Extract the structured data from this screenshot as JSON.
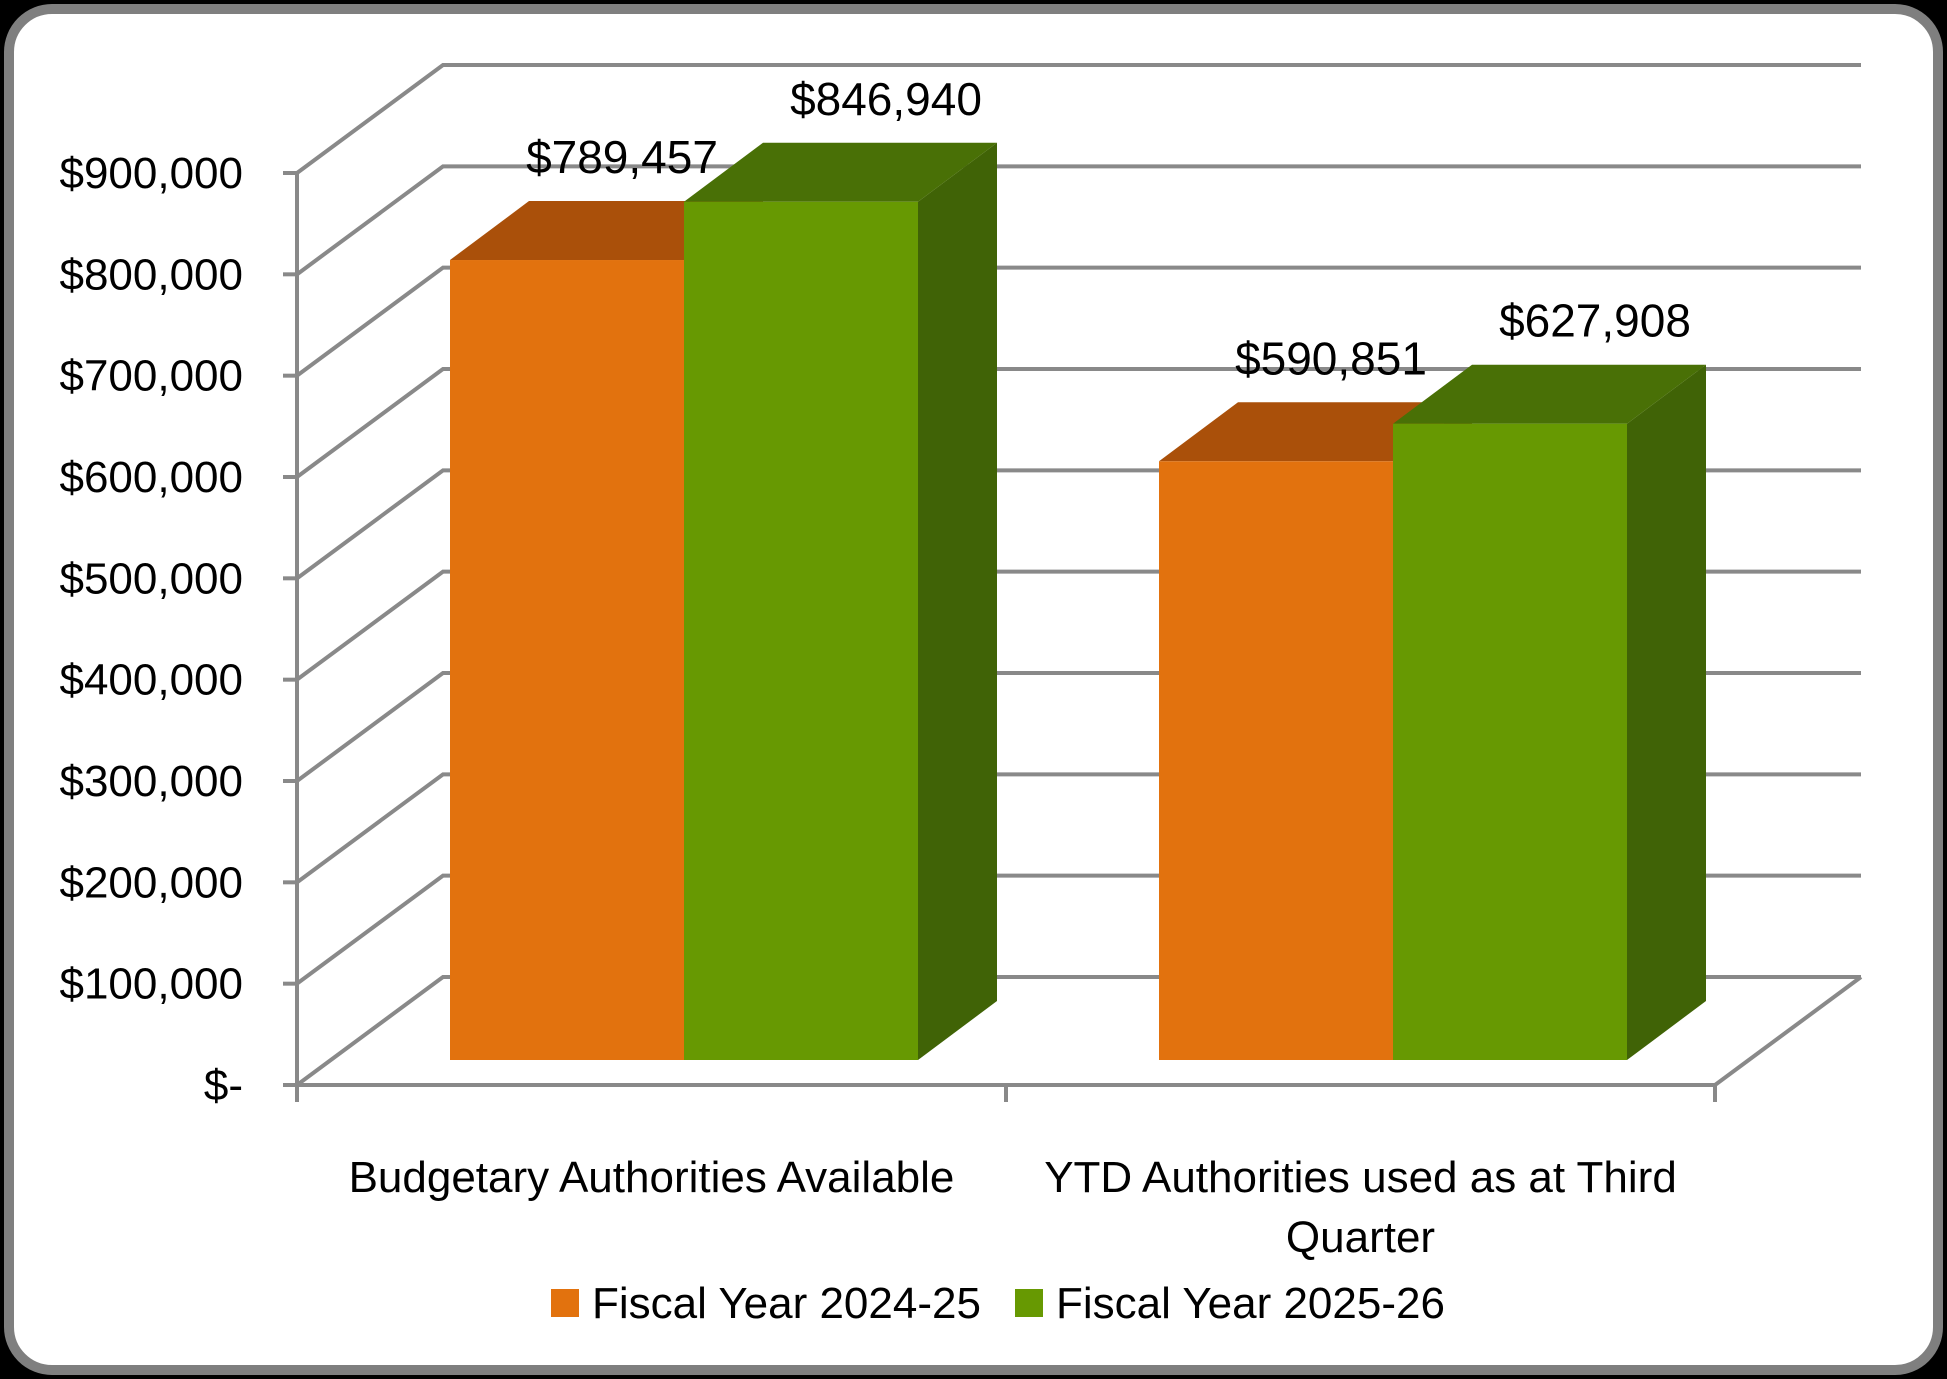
{
  "chart_data": {
    "type": "bar",
    "subtype": "3d-clustered-column",
    "title": "",
    "categories": [
      "Budgetary Authorities Available",
      "YTD Authorities used as at Third Quarter"
    ],
    "category_label_lines": [
      [
        "Budgetary Authorities Available"
      ],
      [
        "YTD Authorities used as at Third",
        "Quarter"
      ]
    ],
    "series": [
      {
        "name": "Fiscal Year 2024-25",
        "values": [
          789457,
          590851
        ],
        "labels": [
          "$789,457",
          "$590,851"
        ],
        "color": "#E2720E",
        "top_color": "#AA500A",
        "side_color": "#8F4408"
      },
      {
        "name": "Fiscal Year 2025-26",
        "values": [
          846940,
          627908
        ],
        "labels": [
          "$846,940",
          "$627,908"
        ],
        "color": "#679902",
        "top_color": "#497006",
        "side_color": "#406306"
      }
    ],
    "y_axis": {
      "min": 0,
      "max": 900000,
      "step": 100000,
      "tick_labels": [
        "$-",
        "$100,000",
        "$200,000",
        "$300,000",
        "$400,000",
        "$500,000",
        "$600,000",
        "$700,000",
        "$800,000",
        "$900,000"
      ]
    },
    "legend_position": "bottom",
    "grid": true,
    "colors": {
      "gridline": "#898989",
      "axis": "#898989",
      "frame_border": "#7f7f7f",
      "background": "#ffffff",
      "text": "#000000"
    }
  }
}
